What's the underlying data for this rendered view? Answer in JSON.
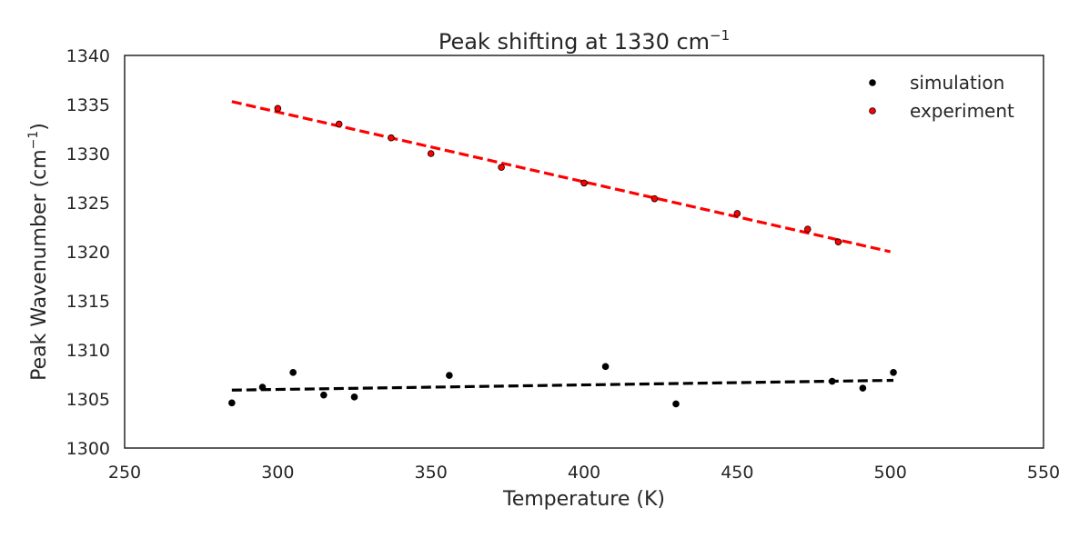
{
  "chart_data": {
    "type": "scatter",
    "title": "Peak shifting at 1330 cm",
    "title_superscript": "−1",
    "xlabel": "Temperature (K)",
    "ylabel": "Peak Wavenumber (cm",
    "ylabel_superscript": "−1",
    "ylabel_close": ")",
    "xlim": [
      250,
      550
    ],
    "ylim": [
      1300,
      1340
    ],
    "xticks": [
      250,
      300,
      350,
      400,
      450,
      500,
      550
    ],
    "yticks": [
      1300,
      1305,
      1310,
      1315,
      1320,
      1325,
      1330,
      1335,
      1340
    ],
    "grid": false,
    "legend_position": "top-right",
    "series": [
      {
        "name": "simulation",
        "color": "#000000",
        "x": [
          285,
          295,
          305,
          315,
          325,
          356,
          407,
          430,
          481,
          491,
          501
        ],
        "y": [
          1304.6,
          1306.2,
          1307.7,
          1305.4,
          1305.2,
          1307.4,
          1308.3,
          1304.5,
          1306.8,
          1306.1,
          1307.7
        ],
        "fit": {
          "x": [
            285,
            501
          ],
          "y": [
            1305.9,
            1306.9
          ],
          "color": "#000000"
        }
      },
      {
        "name": "experiment",
        "color": "#ff0000",
        "x": [
          300,
          320,
          337,
          350,
          373,
          400,
          423,
          450,
          473,
          483
        ],
        "y": [
          1334.6,
          1333.0,
          1331.6,
          1330.0,
          1328.6,
          1327.0,
          1325.4,
          1323.9,
          1322.3,
          1321.0
        ],
        "fit": {
          "x": [
            285,
            500
          ],
          "y": [
            1335.3,
            1320.0
          ],
          "color": "#ff0000"
        }
      }
    ]
  }
}
